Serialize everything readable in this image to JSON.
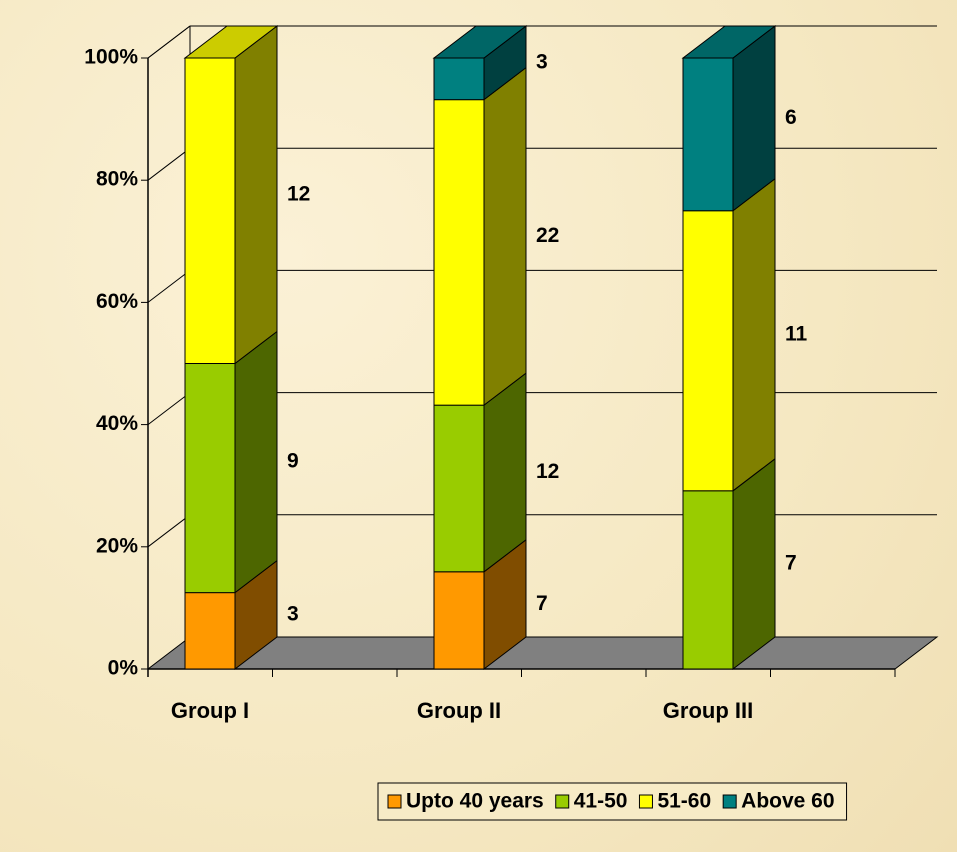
{
  "chart_data": {
    "type": "bar",
    "stacking": "percent",
    "categories": [
      "Group I",
      "Group II",
      "Group III"
    ],
    "series": [
      {
        "name": "Upto 40 years",
        "color": "#ff9900",
        "values": [
          3,
          7,
          null
        ]
      },
      {
        "name": "41-50",
        "color": "#99cc00",
        "values": [
          9,
          12,
          7
        ]
      },
      {
        "name": "51-60",
        "color": "#ffff00",
        "values": [
          12,
          22,
          11
        ]
      },
      {
        "name": "Above 60",
        "color": "#008080",
        "values": [
          null,
          3,
          6
        ]
      }
    ],
    "ylim": [
      0,
      100
    ],
    "yticks": [
      {
        "value": 0,
        "label": "0%"
      },
      {
        "value": 20,
        "label": "20%"
      },
      {
        "value": 40,
        "label": "40%"
      },
      {
        "value": 60,
        "label": "60%"
      },
      {
        "value": 80,
        "label": "80%"
      },
      {
        "value": 100,
        "label": "100%"
      }
    ],
    "grid": true,
    "legend": "bottom"
  }
}
